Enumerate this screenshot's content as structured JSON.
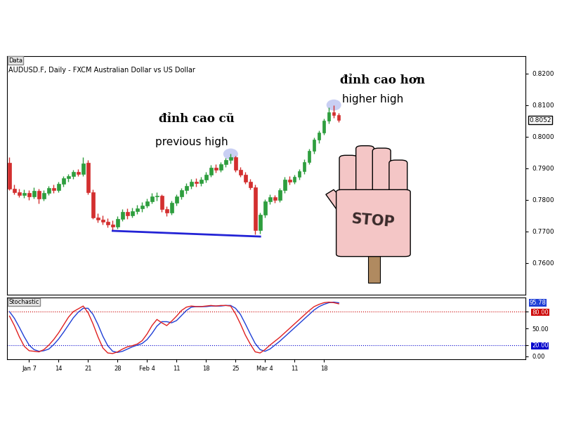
{
  "chart_data": [
    {
      "type": "candlestick",
      "label": "Data",
      "title": "AUDUSD.F, Daily - FXCM Australian Dollar vs US Dollar",
      "open": [
        0.7918,
        0.7835,
        0.7825,
        0.7815,
        0.7822,
        0.781,
        0.7828,
        0.7805,
        0.7822,
        0.7838,
        0.783,
        0.785,
        0.7868,
        0.7875,
        0.7888,
        0.7882,
        0.7918,
        0.7825,
        0.7745,
        0.7738,
        0.773,
        0.7722,
        0.7715,
        0.774,
        0.7762,
        0.775,
        0.7765,
        0.7772,
        0.7782,
        0.7795,
        0.781,
        0.7812,
        0.777,
        0.776,
        0.779,
        0.781,
        0.783,
        0.7845,
        0.7858,
        0.7852,
        0.7865,
        0.788,
        0.7902,
        0.7895,
        0.7912,
        0.7925,
        0.7935,
        0.7895,
        0.788,
        0.7858,
        0.784,
        0.7705,
        0.7752,
        0.7795,
        0.7808,
        0.78,
        0.783,
        0.7865,
        0.7858,
        0.7872,
        0.789,
        0.792,
        0.7955,
        0.799,
        0.8012,
        0.805,
        0.8078,
        0.8068
      ],
      "high": [
        0.7935,
        0.7848,
        0.7836,
        0.7832,
        0.783,
        0.784,
        0.7835,
        0.783,
        0.7845,
        0.7848,
        0.7858,
        0.7875,
        0.7882,
        0.7895,
        0.7898,
        0.7935,
        0.7925,
        0.7832,
        0.7758,
        0.775,
        0.7742,
        0.7735,
        0.7748,
        0.777,
        0.7772,
        0.7775,
        0.7785,
        0.7792,
        0.7805,
        0.7822,
        0.7825,
        0.7818,
        0.778,
        0.7798,
        0.7818,
        0.7838,
        0.7852,
        0.7866,
        0.7868,
        0.7872,
        0.7888,
        0.791,
        0.7912,
        0.792,
        0.7932,
        0.7945,
        0.794,
        0.7905,
        0.7888,
        0.7866,
        0.7848,
        0.776,
        0.7802,
        0.7818,
        0.7815,
        0.7838,
        0.7872,
        0.7875,
        0.788,
        0.7898,
        0.7928,
        0.7962,
        0.7998,
        0.802,
        0.8058,
        0.8092,
        0.81,
        0.8075
      ],
      "low": [
        0.783,
        0.7818,
        0.7808,
        0.7806,
        0.78,
        0.7804,
        0.7788,
        0.7798,
        0.7815,
        0.7822,
        0.7825,
        0.7842,
        0.7858,
        0.7866,
        0.7874,
        0.7876,
        0.7818,
        0.774,
        0.7728,
        0.7722,
        0.7712,
        0.7704,
        0.7708,
        0.7732,
        0.774,
        0.7744,
        0.7756,
        0.7762,
        0.7775,
        0.7788,
        0.7798,
        0.7762,
        0.7748,
        0.7752,
        0.7782,
        0.7802,
        0.782,
        0.7836,
        0.7842,
        0.7844,
        0.7856,
        0.7872,
        0.7886,
        0.7888,
        0.7904,
        0.7915,
        0.7888,
        0.7872,
        0.785,
        0.7832,
        0.769,
        0.7692,
        0.7745,
        0.7786,
        0.779,
        0.7794,
        0.7822,
        0.7848,
        0.785,
        0.7864,
        0.7882,
        0.7912,
        0.7946,
        0.798,
        0.8005,
        0.8042,
        0.806,
        0.8045
      ],
      "close": [
        0.7835,
        0.7825,
        0.7815,
        0.7822,
        0.781,
        0.7828,
        0.7805,
        0.7822,
        0.7838,
        0.783,
        0.785,
        0.7868,
        0.7875,
        0.7888,
        0.7882,
        0.7915,
        0.7825,
        0.7745,
        0.7738,
        0.773,
        0.7722,
        0.7715,
        0.774,
        0.7762,
        0.775,
        0.7765,
        0.7772,
        0.7782,
        0.7795,
        0.781,
        0.7812,
        0.777,
        0.776,
        0.779,
        0.781,
        0.783,
        0.7845,
        0.7858,
        0.7852,
        0.7865,
        0.788,
        0.7902,
        0.7895,
        0.7912,
        0.7925,
        0.7935,
        0.7895,
        0.788,
        0.7858,
        0.784,
        0.7705,
        0.7752,
        0.7795,
        0.7808,
        0.78,
        0.783,
        0.7865,
        0.7858,
        0.7872,
        0.789,
        0.792,
        0.7955,
        0.799,
        0.8012,
        0.805,
        0.8078,
        0.8068,
        0.8052
      ],
      "color": {
        "up": "#2e9e3e",
        "down": "#d32f2f"
      },
      "xlim": [
        -0.5,
        105
      ],
      "ylim": [
        0.75,
        0.8255
      ],
      "yticks": [
        {
          "value": 0.76,
          "label": "0.7600"
        },
        {
          "value": 0.77,
          "label": "0.7700"
        },
        {
          "value": 0.78,
          "label": "0.7800"
        },
        {
          "value": 0.79,
          "label": "0.7900"
        },
        {
          "value": 0.8,
          "label": "0.8000"
        },
        {
          "value": 0.81,
          "label": "0.8100"
        },
        {
          "value": 0.82,
          "label": "0.8200"
        }
      ],
      "tick_labels": "y",
      "grid": false,
      "trendline": {
        "x": [
          21,
          51
        ],
        "values": [
          0.7702,
          0.7684
        ],
        "color": "#2323d6"
      },
      "annotations": [
        {
          "text": "đỉnh cao cũ",
          "subtext": "previous high",
          "x": 45,
          "value": 0.7945
        },
        {
          "text": "đỉnh cao hơn",
          "subtext": "higher high",
          "x": 66,
          "value": 0.81
        }
      ],
      "stop_sign": "STOP"
    },
    {
      "type": "line",
      "label": "Stochastic",
      "categories": [
        null,
        null,
        null,
        null,
        "Jan 7",
        null,
        null,
        null,
        null,
        null,
        "14",
        null,
        null,
        null,
        null,
        null,
        "21",
        null,
        null,
        null,
        null,
        null,
        "28",
        null,
        null,
        null,
        null,
        null,
        "Feb 4",
        null,
        null,
        null,
        null,
        null,
        "11",
        null,
        null,
        null,
        null,
        null,
        "18",
        null,
        null,
        null,
        null,
        null,
        "25",
        null,
        null,
        null,
        null,
        null,
        "Mar 4",
        null,
        null,
        null,
        null,
        null,
        "11",
        null,
        null,
        null,
        null,
        null,
        "18",
        null,
        null,
        null
      ],
      "series": [
        {
          "color": "#1f3fd6",
          "values": [
            80,
            68,
            52,
            35,
            20,
            12,
            9,
            10,
            13,
            21,
            31,
            43,
            56,
            69,
            79,
            86,
            86,
            75,
            57,
            36,
            19,
            9,
            7,
            9,
            13,
            17,
            20,
            23,
            30,
            41,
            54,
            62,
            62,
            60,
            64,
            73,
            82,
            88,
            89,
            89,
            89,
            90,
            90,
            90,
            91,
            91,
            86,
            75,
            58,
            40,
            23,
            12,
            9,
            13,
            20,
            27,
            35,
            43,
            51,
            59,
            67,
            75,
            83,
            89,
            93,
            96,
            97,
            95.78
          ]
        },
        {
          "color": "#e02020",
          "values": [
            72,
            55,
            35,
            18,
            10,
            9,
            8,
            12,
            20,
            30,
            42,
            56,
            70,
            80,
            85,
            90,
            78,
            58,
            35,
            15,
            6,
            5,
            8,
            13,
            17,
            19,
            22,
            28,
            40,
            55,
            66,
            60,
            55,
            63,
            72,
            82,
            88,
            90,
            89,
            89,
            90,
            91,
            90,
            91,
            91,
            90,
            76,
            58,
            38,
            22,
            8,
            6,
            12,
            20,
            27,
            34,
            42,
            50,
            58,
            66,
            74,
            82,
            89,
            93,
            96,
            97,
            96,
            94
          ]
        }
      ],
      "xlim": [
        -0.5,
        105
      ],
      "ylim": [
        -5,
        105
      ],
      "yticks": [
        {
          "value": 0,
          "label": "0.00"
        },
        {
          "value": 20,
          "label": "20.00"
        },
        {
          "value": 50,
          "label": "50.00"
        },
        {
          "value": 80,
          "label": "80.00"
        }
      ],
      "levels": [
        {
          "value": 80,
          "color": "#cc0000"
        },
        {
          "value": 20,
          "color": "#0000cc"
        }
      ],
      "line_style": "dotted",
      "grid": false
    }
  ]
}
